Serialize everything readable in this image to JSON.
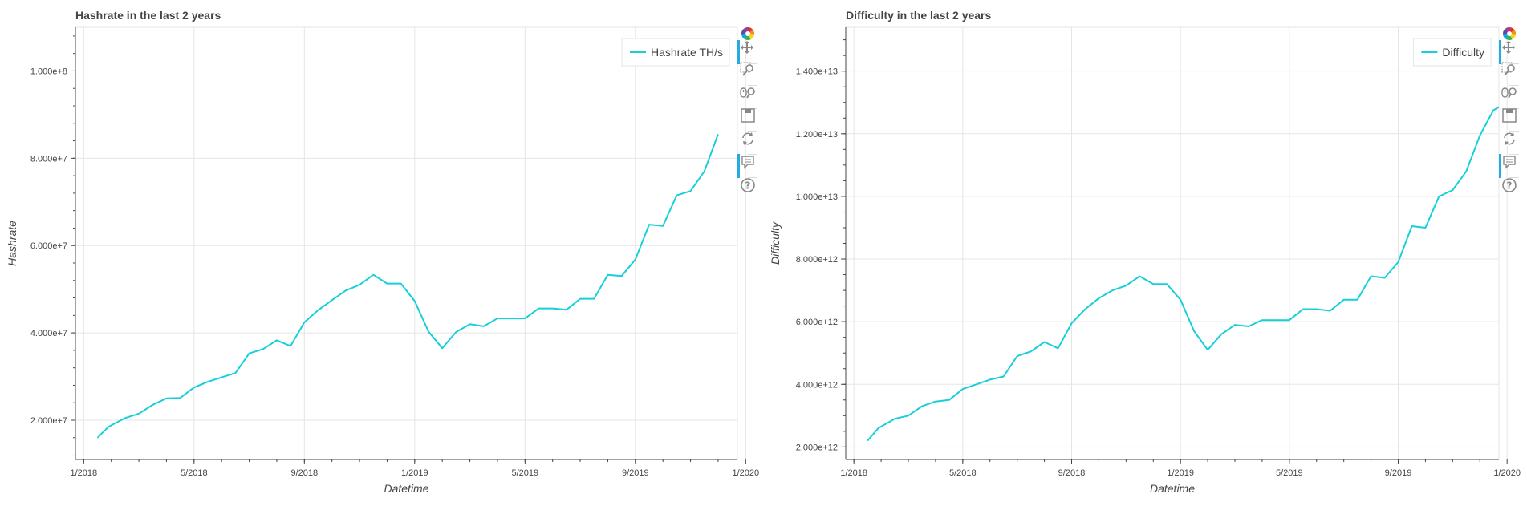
{
  "charts": [
    {
      "id": "left",
      "title": "Hashrate in the last 2 years",
      "legend": "Hashrate TH/s",
      "xlabel": "Datetime",
      "ylabel": "Hashrate",
      "xticks": [
        "1/2018",
        "5/2018",
        "9/2018",
        "1/2019",
        "5/2019",
        "9/2019",
        "1/2020"
      ],
      "yticks": [
        "2.000e+7",
        "4.000e+7",
        "6.000e+7",
        "8.000e+7",
        "1.000e+8"
      ]
    },
    {
      "id": "right",
      "title": "Difficulty in the last 2 years",
      "legend": "Difficulty",
      "xlabel": "Datetime",
      "ylabel": "Difficulty",
      "xticks": [
        "1/2018",
        "5/2018",
        "9/2018",
        "1/2019",
        "5/2019",
        "9/2019",
        "1/2020"
      ],
      "yticks": [
        "2.000e+12",
        "4.000e+12",
        "6.000e+12",
        "8.000e+12",
        "1.000e+13",
        "1.200e+13",
        "1.400e+13"
      ]
    }
  ],
  "toolbar": [
    "bokeh-logo-icon",
    "pan-icon",
    "box-zoom-icon",
    "wheel-zoom-icon",
    "save-icon",
    "reset-icon",
    "hover-icon",
    "help-icon"
  ],
  "colors": {
    "line": "#17cfd9",
    "grid": "#e5e5e5",
    "axis": "#444444",
    "active_tool": "#26aae1"
  },
  "chart_data": [
    {
      "type": "line",
      "title": "Hashrate in the last 2 years",
      "xlabel": "Datetime",
      "ylabel": "Hashrate",
      "x_unit": "months since 1/2018",
      "xlim": [
        -0.3,
        23.7
      ],
      "ylim": [
        11000000,
        110000000
      ],
      "legend_position": "top-right",
      "grid": true,
      "series": [
        {
          "name": "Hashrate TH/s",
          "x": [
            0.5,
            0.9,
            1.5,
            2.0,
            2.5,
            3.0,
            3.5,
            4.0,
            4.5,
            5.0,
            5.5,
            6.0,
            6.5,
            7.0,
            7.5,
            8.0,
            8.5,
            9.0,
            9.5,
            10.0,
            10.5,
            11.0,
            11.5,
            12.0,
            12.5,
            13.0,
            13.5,
            14.0,
            14.5,
            15.0,
            15.5,
            16.0,
            16.5,
            17.0,
            17.5,
            18.0,
            18.5,
            19.0,
            19.5,
            20.0,
            20.5,
            21.0,
            21.5,
            22.0,
            22.5,
            23.0
          ],
          "y": [
            16000000,
            18500000,
            20500000,
            21500000,
            23500000,
            25000000,
            25100000,
            27500000,
            28800000,
            29800000,
            30800000,
            35300000,
            36300000,
            38300000,
            37000000,
            42400000,
            45200000,
            47500000,
            49700000,
            51000000,
            53300000,
            51300000,
            51300000,
            47300000,
            40300000,
            36500000,
            40200000,
            42000000,
            41500000,
            43300000,
            43300000,
            43300000,
            45600000,
            45600000,
            45300000,
            47800000,
            47800000,
            53300000,
            53000000,
            56800000,
            64800000,
            64500000,
            71500000,
            72500000,
            77000000,
            85500000
          ]
        }
      ]
    },
    {
      "type": "line",
      "title": "Difficulty in the last 2 years",
      "xlabel": "Datetime",
      "ylabel": "Difficulty",
      "x_unit": "months since 1/2018",
      "xlim": [
        -0.3,
        23.7
      ],
      "ylim": [
        1600000000000,
        15400000000000
      ],
      "legend_position": "top-right",
      "grid": true,
      "series": [
        {
          "name": "Difficulty",
          "x": [
            0.5,
            0.9,
            1.5,
            2.0,
            2.5,
            3.0,
            3.5,
            4.0,
            4.5,
            5.0,
            5.5,
            6.0,
            6.5,
            7.0,
            7.5,
            8.0,
            8.5,
            9.0,
            9.5,
            10.0,
            10.5,
            11.0,
            11.5,
            12.0,
            12.5,
            13.0,
            13.5,
            14.0,
            14.5,
            15.0,
            15.5,
            16.0,
            16.5,
            17.0,
            17.5,
            18.0,
            18.5,
            19.0,
            19.5,
            20.0,
            20.5,
            21.0,
            21.5,
            22.0,
            22.5,
            23.0,
            23.5,
            24.0
          ],
          "y": [
            2200000000000,
            2600000000000,
            2900000000000,
            3000000000000,
            3300000000000,
            3450000000000,
            3500000000000,
            3850000000000,
            4000000000000,
            4150000000000,
            4250000000000,
            4900000000000,
            5050000000000,
            5350000000000,
            5150000000000,
            5950000000000,
            6400000000000,
            6750000000000,
            7000000000000,
            7150000000000,
            7450000000000,
            7200000000000,
            7200000000000,
            6700000000000,
            5700000000000,
            5100000000000,
            5600000000000,
            5900000000000,
            5850000000000,
            6050000000000,
            6050000000000,
            6050000000000,
            6400000000000,
            6400000000000,
            6350000000000,
            6700000000000,
            6700000000000,
            7450000000000,
            7400000000000,
            7900000000000,
            9050000000000,
            9000000000000,
            10000000000000,
            10200000000000,
            10800000000000,
            11950000000000,
            12750000000000,
            13000000000000
          ]
        }
      ]
    }
  ]
}
